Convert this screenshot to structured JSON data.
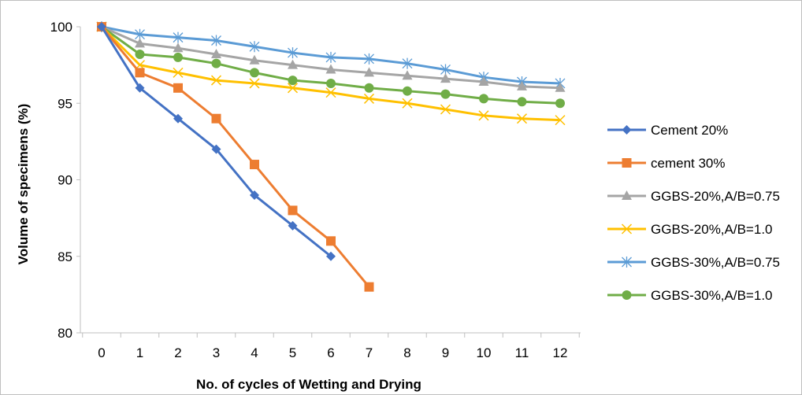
{
  "chart_data": {
    "type": "line",
    "title": "",
    "xlabel": "No. of cycles of Wetting and Drying",
    "ylabel": "Volume of specimens (%)",
    "xlim": [
      0,
      12
    ],
    "ylim": [
      80,
      100
    ],
    "x_ticks": [
      "0",
      "1",
      "2",
      "3",
      "4",
      "5",
      "6",
      "7",
      "8",
      "9",
      "10",
      "11",
      "12"
    ],
    "y_ticks": [
      "80",
      "85",
      "90",
      "95",
      "100"
    ],
    "grid": false,
    "legend_position": "right",
    "series": [
      {
        "name": "Cement 20%",
        "color": "#4472c4",
        "marker": "diamond",
        "x": [
          0,
          1,
          2,
          3,
          4,
          5,
          6
        ],
        "values": [
          100,
          96,
          94,
          92,
          89,
          87,
          85
        ]
      },
      {
        "name": "cement 30%",
        "color": "#ed7d31",
        "marker": "square",
        "x": [
          0,
          1,
          2,
          3,
          4,
          5,
          6,
          7
        ],
        "values": [
          100,
          97,
          96,
          94,
          91,
          88,
          86,
          83
        ]
      },
      {
        "name": "GGBS-20%,A/B=0.75",
        "color": "#a5a5a5",
        "marker": "triangle",
        "x": [
          0,
          1,
          2,
          3,
          4,
          5,
          6,
          7,
          8,
          9,
          10,
          11,
          12
        ],
        "values": [
          100,
          98.9,
          98.6,
          98.2,
          97.8,
          97.5,
          97.2,
          97.0,
          96.8,
          96.6,
          96.4,
          96.1,
          96.0
        ]
      },
      {
        "name": "GGBS-20%,A/B=1.0",
        "color": "#ffc000",
        "marker": "x",
        "x": [
          0,
          1,
          2,
          3,
          4,
          5,
          6,
          7,
          8,
          9,
          10,
          11,
          12
        ],
        "values": [
          100,
          97.5,
          97.0,
          96.5,
          96.3,
          96.0,
          95.7,
          95.3,
          95.0,
          94.6,
          94.2,
          94.0,
          93.9
        ]
      },
      {
        "name": "GGBS-30%,A/B=0.75",
        "color": "#5b9bd5",
        "marker": "star",
        "x": [
          0,
          1,
          2,
          3,
          4,
          5,
          6,
          7,
          8,
          9,
          10,
          11,
          12
        ],
        "values": [
          100,
          99.5,
          99.3,
          99.1,
          98.7,
          98.3,
          98.0,
          97.9,
          97.6,
          97.2,
          96.7,
          96.4,
          96.3
        ]
      },
      {
        "name": "GGBS-30%,A/B=1.0",
        "color": "#70ad47",
        "marker": "circle",
        "x": [
          0,
          1,
          2,
          3,
          4,
          5,
          6,
          7,
          8,
          9,
          10,
          11,
          12
        ],
        "values": [
          100,
          98.2,
          98.0,
          97.6,
          97.0,
          96.5,
          96.3,
          96.0,
          95.8,
          95.6,
          95.3,
          95.1,
          95.0
        ]
      }
    ]
  }
}
